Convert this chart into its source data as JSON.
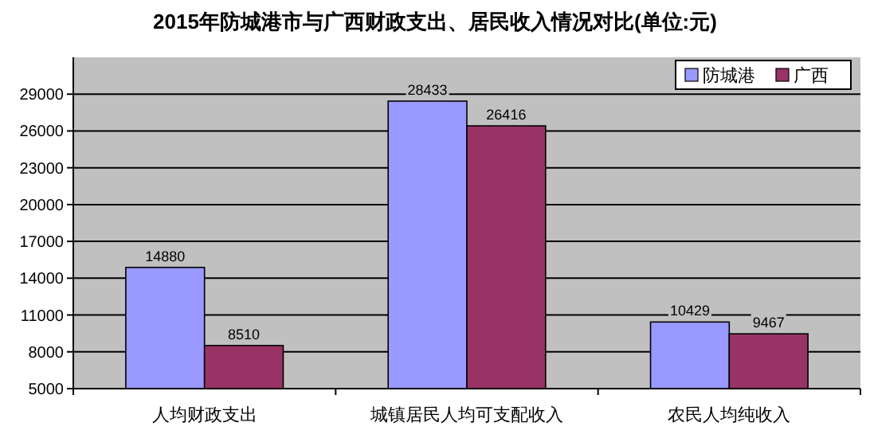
{
  "chart_data": {
    "type": "bar",
    "title": "2015年防城港市与广西财政支出、居民收入情况对比(单位:元)",
    "categories": [
      "人均财政支出",
      "城镇居民人均可支配收入",
      "农民人均纯收入"
    ],
    "series": [
      {
        "name": "防城港",
        "color": "#9999ff",
        "values": [
          14880,
          28433,
          10429
        ]
      },
      {
        "name": "广西",
        "color": "#993366",
        "values": [
          8510,
          26416,
          9467
        ]
      }
    ],
    "ylim": [
      5000,
      32000
    ],
    "yticks": [
      5000,
      8000,
      11000,
      14000,
      17000,
      20000,
      23000,
      26000,
      29000
    ],
    "grid": "y",
    "legend": "top right",
    "data_labels": true
  }
}
